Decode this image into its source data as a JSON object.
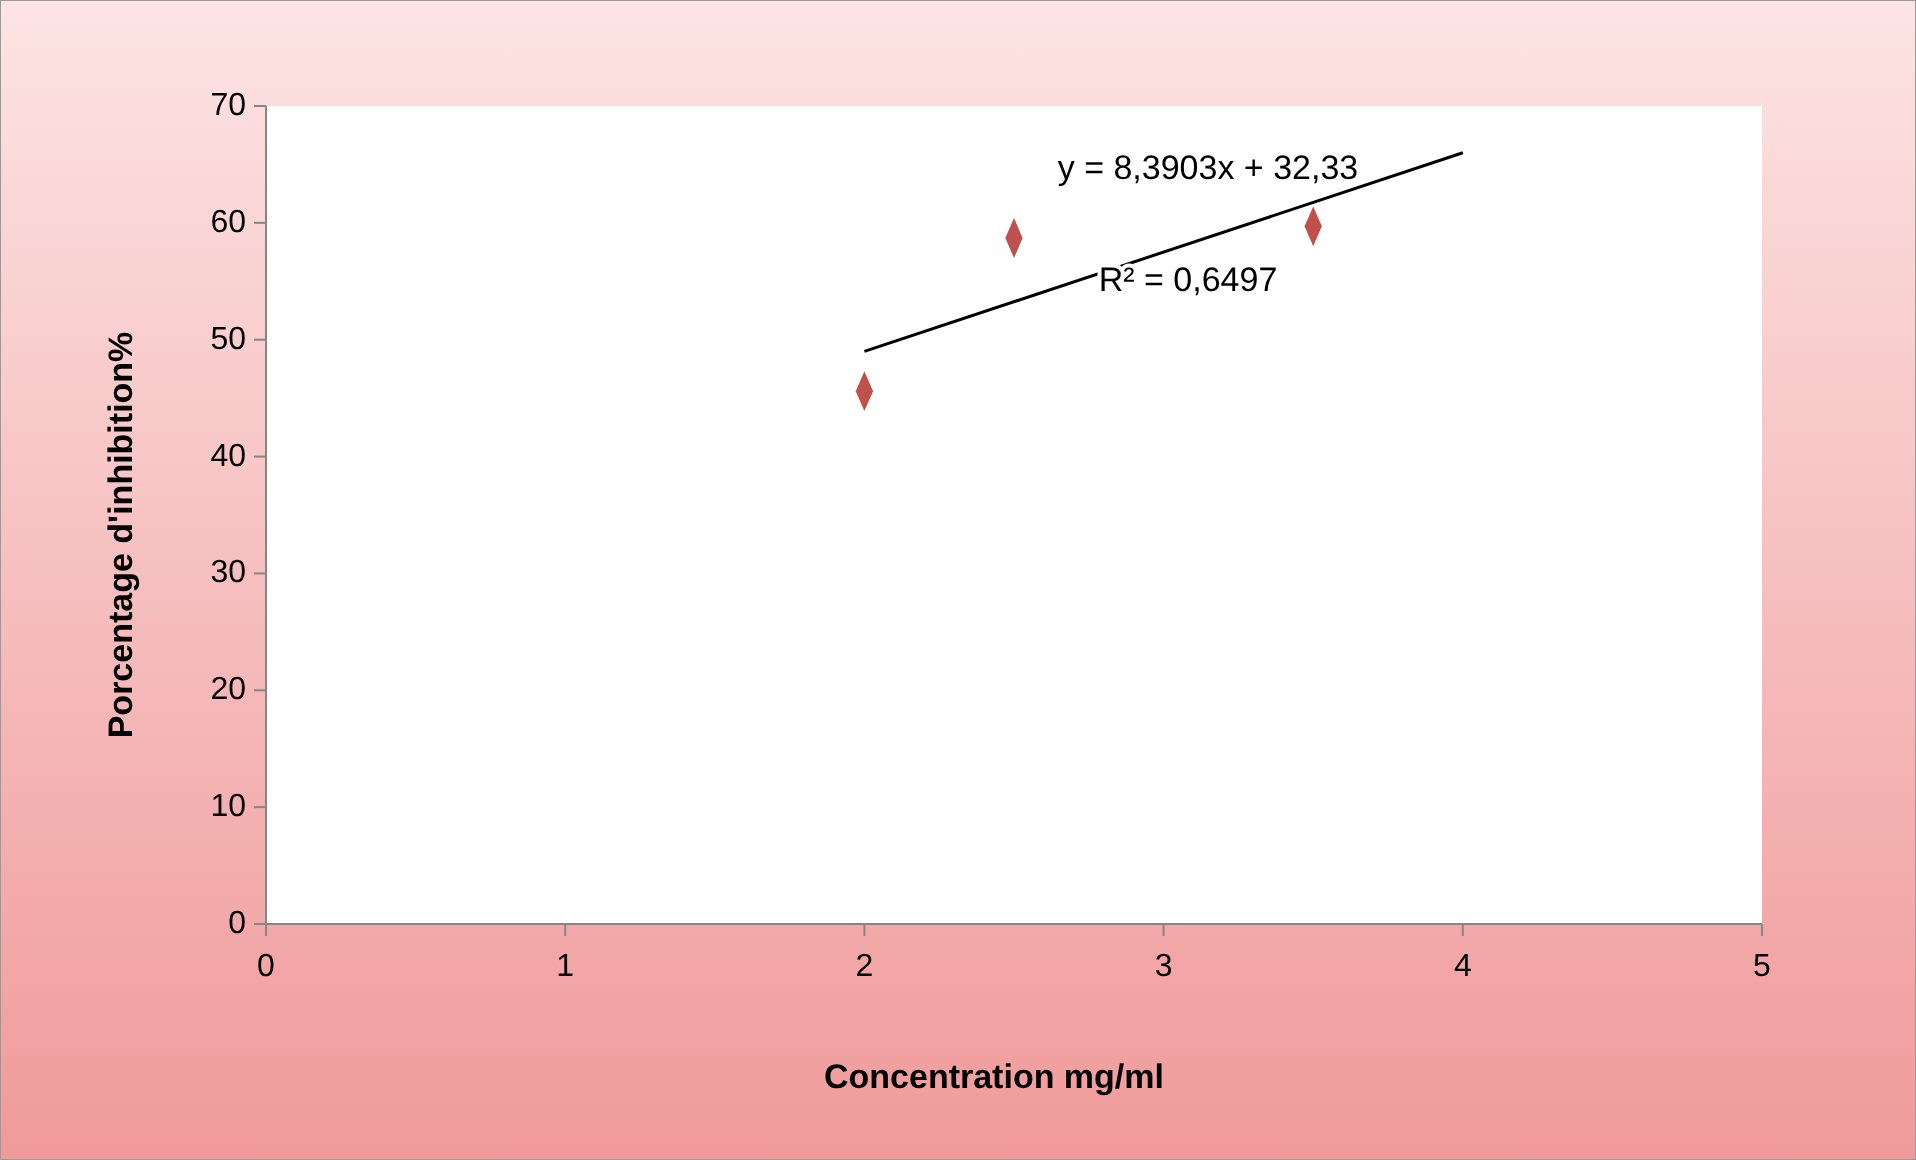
{
  "chart_data": {
    "type": "scatter",
    "xlabel": "Concentration mg/ml",
    "ylabel": "Porcentage d'inhibition%",
    "xlim": [
      0,
      5
    ],
    "xticks": [
      0,
      1,
      2,
      3,
      4,
      5
    ],
    "ylim": [
      0,
      70
    ],
    "yticks": [
      0,
      10,
      20,
      30,
      40,
      50,
      60,
      70
    ],
    "grid": false,
    "series": [
      {
        "color": "#c0504d",
        "marker": "diamond",
        "x": [
          2,
          2.5,
          3.5
        ],
        "values": [
          45.6,
          58.7,
          59.7
        ]
      },
      {
        "type": "line",
        "color": "#000000",
        "marker": "none",
        "line_style": "solid",
        "x": [
          2,
          4
        ],
        "values": [
          49,
          66
        ]
      }
    ],
    "annotations": [
      "y = 8,3903x + 32,33",
      "R² = 0,6497"
    ]
  }
}
